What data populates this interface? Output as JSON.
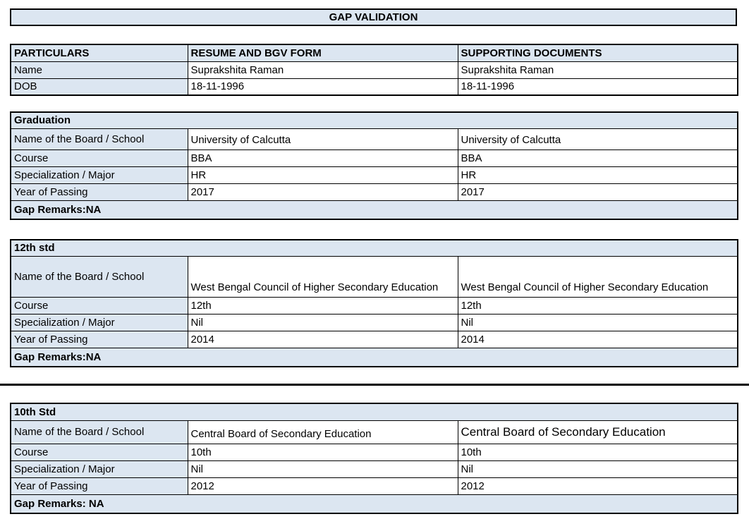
{
  "title": "GAP VALIDATION",
  "colors": {
    "header_fill": "#dce6f1",
    "border": "#000000",
    "text": "#000000",
    "background": "#ffffff"
  },
  "particulars": {
    "headers": [
      "PARTICULARS",
      "RESUME AND BGV FORM",
      "SUPPORTING DOCUMENTS"
    ],
    "rows": [
      {
        "label": "Name",
        "values": [
          "Suprakshita Raman",
          "Suprakshita Raman"
        ]
      },
      {
        "label": "DOB",
        "values": [
          "18-11-1996",
          "18-11-1996"
        ]
      }
    ]
  },
  "sections": [
    {
      "title": "Graduation",
      "rows": [
        {
          "label": "Name of the Board / School",
          "values": [
            "University of Calcutta",
            "University of Calcutta"
          ]
        },
        {
          "label": "Course",
          "values": [
            "BBA",
            "BBA"
          ]
        },
        {
          "label": "Specialization / Major",
          "values": [
            "HR",
            "HR"
          ]
        },
        {
          "label": "Year of Passing",
          "values": [
            "2017",
            "2017"
          ]
        }
      ],
      "gap_remarks": "Gap Remarks:NA"
    },
    {
      "title": "12th std",
      "rows": [
        {
          "label": "Name of the Board / School",
          "values": [
            "West Bengal Council of Higher Secondary Education",
            "West Bengal Council of Higher Secondary Education"
          ]
        },
        {
          "label": "Course",
          "values": [
            "12th",
            "12th"
          ]
        },
        {
          "label": "Specialization / Major",
          "values": [
            "Nil",
            "Nil"
          ]
        },
        {
          "label": "Year of Passing",
          "values": [
            "2014",
            "2014"
          ]
        }
      ],
      "gap_remarks": "Gap Remarks:NA"
    },
    {
      "title": "10th Std",
      "rows": [
        {
          "label": "Name of the Board / School",
          "values": [
            "Central Board of Secondary Education",
            "Central Board of Secondary Education"
          ]
        },
        {
          "label": "Course",
          "values": [
            "10th",
            "10th"
          ]
        },
        {
          "label": "Specialization / Major",
          "values": [
            "Nil",
            "Nil"
          ]
        },
        {
          "label": "Year of Passing",
          "values": [
            "2012",
            "2012"
          ]
        }
      ],
      "gap_remarks": "Gap Remarks: NA"
    }
  ]
}
